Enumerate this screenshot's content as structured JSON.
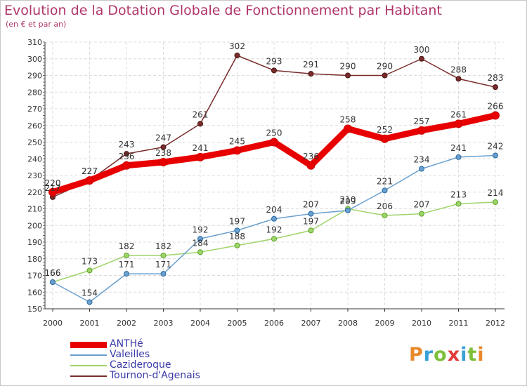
{
  "header": {
    "title": "Evolution de la Dotation Globale de Fonctionnement par Habitant",
    "subtitle": "(en € et par an)"
  },
  "brand": {
    "letters": [
      "P",
      "r",
      "o",
      "x",
      "i",
      "t",
      "i"
    ],
    "colors": [
      "#e8892b",
      "#3aa0d8",
      "#7cbf3a",
      "#e23b3b",
      "#3aa0d8",
      "#7cbf3a",
      "#e8892b"
    ]
  },
  "chart_data": {
    "type": "line",
    "x": [
      "2000",
      "2001",
      "2002",
      "2003",
      "2004",
      "2005",
      "2006",
      "2007",
      "2008",
      "2009",
      "2010",
      "2011",
      "2012"
    ],
    "ylim": [
      150,
      310
    ],
    "yticks": [
      150,
      160,
      170,
      180,
      190,
      200,
      210,
      220,
      230,
      240,
      250,
      260,
      270,
      280,
      290,
      300,
      310
    ],
    "grid": true,
    "legend_position": "bottom-left",
    "series": [
      {
        "name": "ANTHé",
        "color": "#e80000",
        "values": [
          220,
          227,
          236,
          238,
          241,
          245,
          250,
          236,
          258,
          252,
          257,
          261,
          266
        ]
      },
      {
        "name": "Valeilles",
        "color": "#6a9fcf",
        "values": [
          166,
          154,
          171,
          171,
          192,
          197,
          204,
          207,
          209,
          221,
          234,
          241,
          242
        ]
      },
      {
        "name": "Cazideroque",
        "color": "#9fd46a",
        "values": [
          166,
          173,
          182,
          182,
          184,
          188,
          192,
          197,
          210,
          206,
          207,
          213,
          214
        ]
      },
      {
        "name": "Tournon-d'Agenais",
        "color": "#7a2c2c",
        "values": [
          217,
          227,
          243,
          247,
          261,
          302,
          293,
          291,
          290,
          290,
          300,
          288,
          283
        ]
      }
    ]
  }
}
